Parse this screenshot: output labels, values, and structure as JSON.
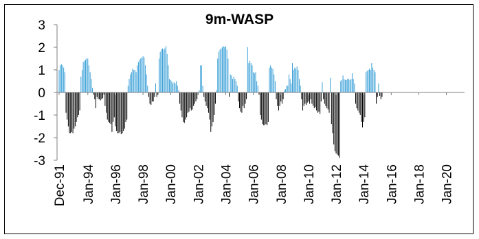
{
  "chart_data": {
    "type": "bar",
    "title": "9m-WASP",
    "xlabel": "",
    "ylabel": "",
    "ylim": [
      -3,
      3
    ],
    "yticks": [
      3,
      2,
      1,
      0,
      -1,
      -2,
      -3
    ],
    "xticks": [
      "Dec-91",
      "Jan-94",
      "Jan-96",
      "Jan-98",
      "Jan-00",
      "Jan-02",
      "Jan-04",
      "Jan-06",
      "Jan-08",
      "Jan-10",
      "Jan-12",
      "Jan-14",
      "Jan-16",
      "Jan-18",
      "Jan-20"
    ],
    "x_unit": "months since Dec-91",
    "x_range_months": [
      0,
      351
    ],
    "grid": false,
    "legend": "none",
    "colors": {
      "positive": "#3aa0d8",
      "negative": "#000000"
    },
    "series": [
      {
        "frequency": "monthly",
        "start": "Dec-91",
        "values": [
          1.0,
          1.2,
          1.25,
          1.2,
          1.1,
          0.9,
          -0.9,
          -1.2,
          -1.5,
          -1.8,
          -1.8,
          -1.75,
          -1.8,
          -1.6,
          -1.5,
          -1.3,
          -1.1,
          -1.0,
          -0.8,
          0.7,
          1.0,
          1.35,
          1.4,
          1.45,
          1.5,
          1.5,
          1.2,
          0.9,
          0.6,
          0.2,
          -0.1,
          -0.3,
          -0.7,
          -0.2,
          -0.3,
          -0.3,
          -0.35,
          -0.3,
          -0.25,
          -0.1,
          -0.6,
          -0.9,
          -1.2,
          -1.3,
          -1.35,
          -1.4,
          -1.75,
          -1.3,
          -1.1,
          -1.5,
          -1.7,
          -1.8,
          -1.8,
          -1.75,
          -1.85,
          -1.8,
          -1.7,
          -1.6,
          -1.3,
          -1.2,
          0.3,
          0.6,
          0.8,
          0.9,
          1.05,
          1.0,
          1.0,
          0.9,
          1.2,
          1.35,
          1.45,
          1.5,
          1.55,
          1.6,
          1.55,
          1.2,
          0.8,
          0.3,
          -0.2,
          -0.5,
          -0.55,
          -0.4,
          -0.4,
          -0.2,
          0.4,
          -0.2,
          -0.1,
          1.5,
          1.8,
          1.9,
          1.95,
          1.9,
          1.95,
          2.05,
          1.7,
          1.2,
          0.6,
          0.55,
          0.5,
          0.4,
          0.45,
          0.4,
          0.5,
          0.3,
          0.1,
          -0.5,
          -0.8,
          -1.1,
          -1.3,
          -1.35,
          -1.2,
          -1.1,
          -0.9,
          -0.85,
          -0.7,
          -0.8,
          -0.75,
          -0.6,
          -0.5,
          -0.4,
          -0.3,
          -0.1,
          0.1,
          1.2,
          1.2,
          0.3,
          -0.2,
          -0.4,
          -0.6,
          -0.7,
          -0.9,
          -1.2,
          -1.75,
          -1.5,
          -1.3,
          -1.0,
          -0.5,
          0.1,
          1.5,
          1.8,
          1.9,
          1.95,
          2.0,
          2.05,
          2.0,
          2.05,
          1.9,
          1.5,
          -0.2,
          0.8,
          0.75,
          0.6,
          0.7,
          0.6,
          0.5,
          0.3,
          -0.4,
          -0.7,
          -0.85,
          -0.9,
          -0.6,
          -0.7,
          -0.5,
          -0.3,
          2.0,
          1.3,
          1.4,
          1.3,
          1.2,
          0.9,
          0.85,
          0.9,
          0.5,
          0.3,
          -0.1,
          -1.0,
          -1.2,
          -1.4,
          -1.45,
          -1.45,
          -1.4,
          -1.45,
          -1.3,
          1.1,
          1.2,
          1.1,
          1.05,
          0.8,
          0.5,
          -0.3,
          -0.6,
          -0.8,
          -0.6,
          -0.4,
          -0.5,
          -0.3,
          0.1,
          0.15,
          0.3,
          0.3,
          0.8,
          0.6,
          0.4,
          1.3,
          1.0,
          1.1,
          1.05,
          1.15,
          1.0,
          0.6,
          0.3,
          -0.3,
          -0.8,
          -0.6,
          -0.5,
          -0.55,
          -0.45,
          -0.4,
          -0.5,
          -0.3,
          -0.5,
          -0.6,
          -0.7,
          -0.65,
          -0.8,
          -0.9,
          -0.85,
          -0.95,
          -0.4,
          0.45,
          -0.3,
          -0.5,
          -0.6,
          -0.7,
          -0.75,
          -0.9,
          0.65,
          -1.4,
          -1.8,
          -2.3,
          -2.6,
          -2.7,
          -2.75,
          -2.8,
          -2.9,
          0.5,
          0.55,
          0.75,
          0.6,
          0.55,
          0.55,
          0.6,
          0.6,
          0.55,
          0.6,
          0.85,
          0.6,
          0.4,
          -0.5,
          -0.7,
          -0.8,
          -0.9,
          -1.0,
          -1.3,
          -1.55,
          -1.3,
          -1.1,
          0.9,
          0.95,
          1.0,
          1.05,
          1.0,
          1.3,
          1.1,
          1.0,
          0.9,
          -0.5,
          -0.2,
          0.4,
          -0.15,
          -0.3,
          -0.2
        ]
      }
    ]
  }
}
